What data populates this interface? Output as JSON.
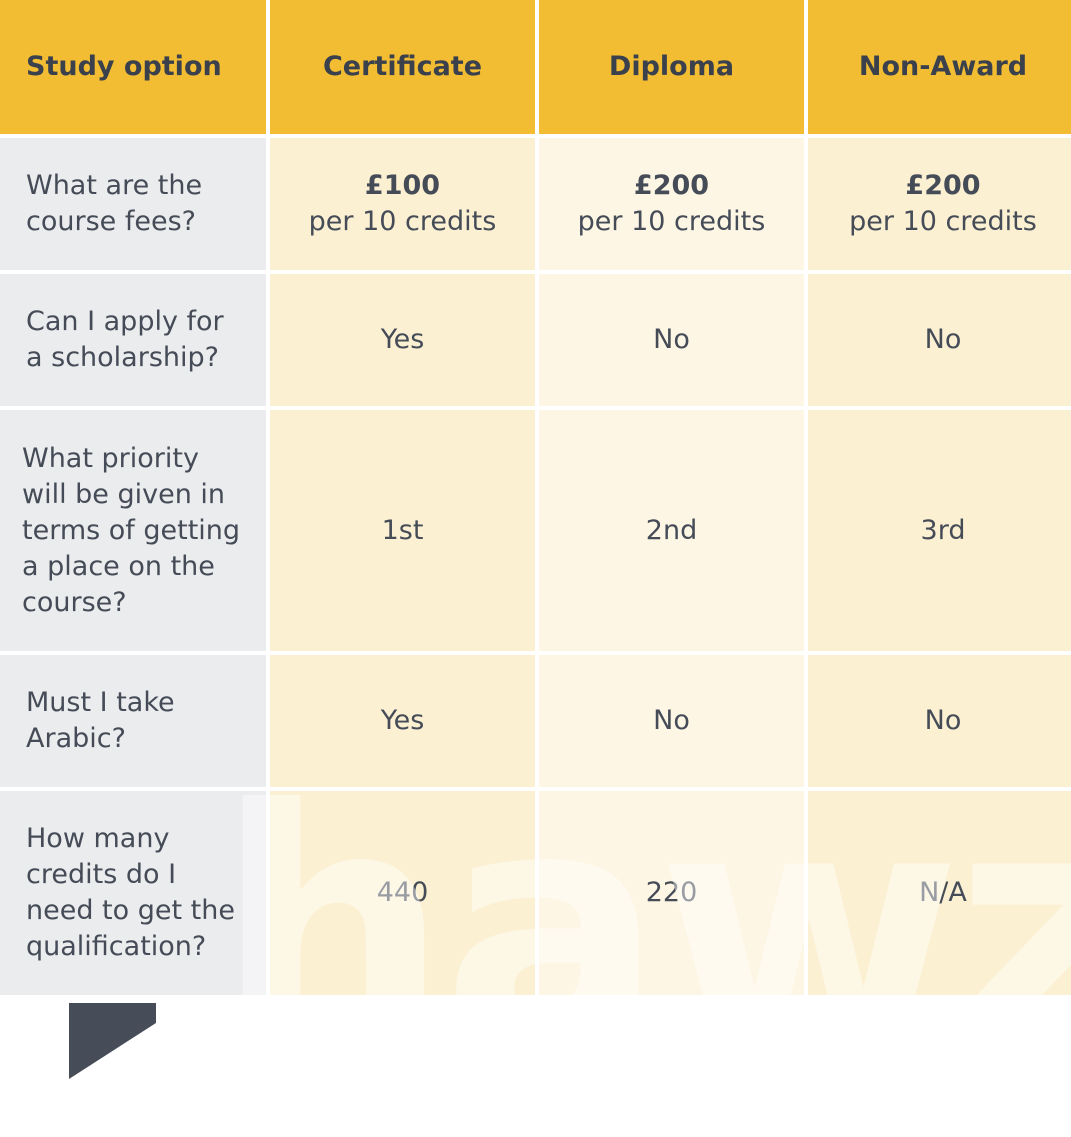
{
  "header": {
    "first": "Study option",
    "columns": [
      "Certificate",
      "Diploma",
      "Non-Award"
    ]
  },
  "rows": [
    {
      "question": "What are the course fees?",
      "fees": [
        {
          "amount": "£100",
          "unit": "per 10 credits"
        },
        {
          "amount": "£200",
          "unit": "per 10 credits"
        },
        {
          "amount": "£200",
          "unit": "per 10 credits"
        }
      ]
    },
    {
      "question": "Can I apply for a scholarship?",
      "values": [
        "Yes",
        "No",
        "No"
      ]
    },
    {
      "question": "What priority will be given in terms of getting a place on the course?",
      "values": [
        "1st",
        "2nd",
        "3rd"
      ]
    },
    {
      "question": "Must I take Arabic?",
      "values": [
        "Yes",
        "No",
        "No"
      ]
    },
    {
      "question": "How many credits do I need to get the qualification?",
      "values": [
        "440",
        "220",
        "N/A"
      ]
    }
  ],
  "watermark": "hawza",
  "colors": {
    "header": "#f3bd33",
    "question_bg": "#ebecee",
    "cell_a": "#fcf0d2",
    "cell_b": "#fdf6e4",
    "text": "#454c57",
    "tab": "#474d58"
  }
}
